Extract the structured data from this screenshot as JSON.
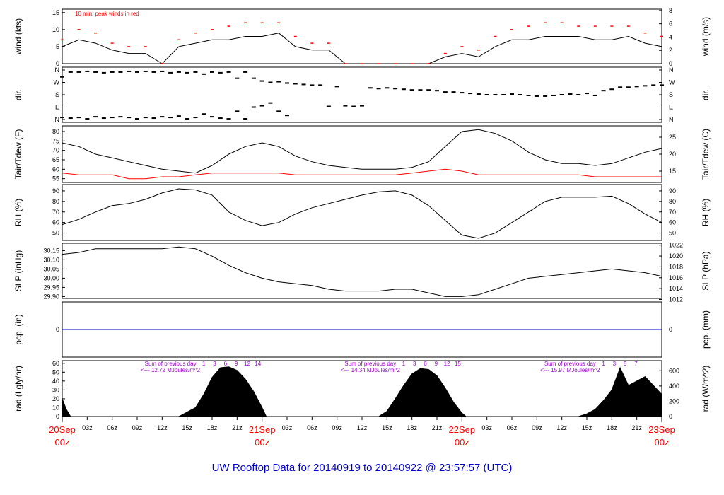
{
  "title": "UW Rooftop Data for 20140919  to  20140922 @ 23:57:57  (UTC)",
  "colors": {
    "peak": "#ff0000",
    "dew": "#ff0000",
    "pcp": "#0000cc",
    "title": "#0000cc",
    "annotation": "#9900cc",
    "date": "#ff0000"
  },
  "x_axis": {
    "hour_ticks": [
      "03z",
      "06z",
      "09z",
      "12z",
      "15z",
      "18z",
      "21z",
      "03z",
      "06z",
      "09z",
      "12z",
      "15z",
      "18z",
      "21z",
      "03z",
      "06z",
      "09z",
      "12z",
      "15z",
      "18z",
      "21z"
    ],
    "date_labels": [
      {
        "date": "20Sep",
        "hour": "00z"
      },
      {
        "date": "21Sep",
        "hour": "00z"
      },
      {
        "date": "22Sep",
        "hour": "00z"
      },
      {
        "date": "23Sep",
        "hour": "00z"
      }
    ]
  },
  "chart_data": [
    {
      "type": "line",
      "id": "wind",
      "ylabel": "wind (kts)",
      "ylabel_right": "wind (m/s)",
      "ylim": [
        0,
        16
      ],
      "yticks": [
        0,
        5,
        10,
        15
      ],
      "right_ylim": [
        0,
        8.2
      ],
      "right_yticks": [
        0,
        2,
        4,
        6,
        8
      ],
      "annotation": "10 min. peak winds in red",
      "x_hours": [
        0,
        2,
        4,
        6,
        8,
        10,
        12,
        14,
        16,
        18,
        20,
        22,
        24,
        26,
        28,
        30,
        32,
        34,
        36,
        38,
        40,
        42,
        44,
        46,
        48,
        50,
        52,
        54,
        56,
        58,
        60,
        62,
        64,
        66,
        68,
        70,
        72
      ],
      "series": [
        {
          "values": [
            5,
            7,
            6,
            4,
            3,
            3,
            0,
            5,
            6,
            7,
            7,
            8,
            8,
            9,
            5,
            4,
            4,
            0,
            0,
            0,
            0,
            0,
            0,
            2,
            3,
            2,
            5,
            7,
            7,
            8,
            8,
            8,
            7,
            7,
            8,
            6,
            5
          ]
        },
        {
          "values": [
            7,
            10,
            9,
            6,
            5,
            5,
            0,
            7,
            9,
            10,
            11,
            12,
            12,
            12,
            8,
            6,
            6,
            0,
            0,
            0,
            0,
            0,
            0,
            3,
            5,
            4,
            8,
            10,
            11,
            12,
            12,
            11,
            11,
            11,
            11,
            9,
            8
          ]
        }
      ]
    },
    {
      "type": "scatter",
      "id": "dir",
      "ylabel": "dir.",
      "ylabel_right": "dir.",
      "ylim": [
        0,
        360
      ],
      "yticks": [
        "N",
        "W",
        "S",
        "E",
        "N"
      ],
      "x_hours": [
        0,
        1,
        2,
        3,
        4,
        5,
        6,
        7,
        8,
        9,
        10,
        11,
        12,
        13,
        14,
        15,
        16,
        17,
        18,
        19,
        20,
        21,
        22,
        23,
        24,
        25,
        26,
        27,
        28,
        29,
        30,
        31,
        32,
        33,
        34,
        35,
        36,
        37,
        38,
        39,
        40,
        41,
        42,
        43,
        44,
        45,
        46,
        47,
        48,
        49,
        50,
        51,
        52,
        53,
        54,
        55,
        56,
        57,
        58,
        59,
        60,
        61,
        62,
        63,
        64,
        65,
        66,
        67,
        68,
        69,
        70,
        71,
        72
      ],
      "series": [
        {
          "values": [
            310,
            345,
            345,
            350,
            345,
            340,
            345,
            345,
            350,
            345,
            350,
            345,
            350,
            340,
            345,
            340,
            345,
            330,
            345,
            340,
            345,
            300,
            345,
            300,
            280,
            270,
            275,
            265,
            260,
            255,
            250,
            250,
            95,
            240,
            100,
            95,
            100,
            230,
            225,
            230,
            225,
            220,
            215,
            215,
            215,
            210,
            200,
            200,
            195,
            190,
            185,
            180,
            180,
            180,
            185,
            180,
            175,
            170,
            170,
            175,
            180,
            185,
            180,
            190,
            175,
            210,
            220,
            235,
            235,
            240,
            245,
            250,
            250
          ]
        },
        {
          "values": [
            15,
            10,
            15,
            5,
            20,
            10,
            15,
            20,
            15,
            5,
            15,
            10,
            20,
            15,
            25,
            5,
            15,
            40,
            20,
            10,
            5,
            60,
            5,
            90,
            100,
            120,
            60,
            30,
            0,
            0,
            0,
            0,
            0,
            0,
            0,
            0,
            0,
            0,
            0,
            0,
            0,
            0,
            0,
            0,
            0,
            0,
            0,
            0,
            0,
            0,
            0,
            0,
            0,
            0,
            0,
            0,
            0,
            0,
            0,
            0,
            0,
            0,
            0,
            0,
            0,
            0,
            0,
            0,
            0,
            0,
            0,
            0,
            0
          ]
        }
      ]
    },
    {
      "type": "line",
      "id": "temp",
      "ylabel": "Tair/Tdew (F)",
      "ylabel_right": "Tair/Tdew (C)",
      "ylim": [
        53,
        83
      ],
      "yticks": [
        55,
        60,
        65,
        70,
        75,
        80
      ],
      "right_yticks": [
        15,
        20,
        25
      ],
      "x_hours": [
        0,
        2,
        4,
        6,
        8,
        10,
        12,
        14,
        16,
        18,
        20,
        22,
        24,
        26,
        28,
        30,
        32,
        34,
        36,
        38,
        40,
        42,
        44,
        46,
        48,
        50,
        52,
        54,
        56,
        58,
        60,
        62,
        64,
        66,
        68,
        70,
        72
      ],
      "series": [
        {
          "values": [
            74,
            72,
            68,
            66,
            64,
            62,
            60,
            59,
            58,
            62,
            68,
            72,
            74,
            72,
            67,
            64,
            62,
            61,
            60,
            60,
            60,
            61,
            64,
            72,
            80,
            81,
            79,
            75,
            69,
            65,
            63,
            63,
            62,
            63,
            66,
            69,
            71
          ]
        },
        {
          "values": [
            58,
            57,
            57,
            57,
            55,
            55,
            56,
            56,
            57,
            58,
            58,
            58,
            58,
            58,
            57,
            57,
            57,
            57,
            57,
            57,
            57,
            58,
            59,
            60,
            59,
            57,
            57,
            57,
            57,
            57,
            57,
            57,
            56,
            56,
            56,
            56,
            56
          ]
        }
      ]
    },
    {
      "type": "line",
      "id": "rh",
      "ylabel": "RH (%)",
      "ylabel_right": "RH (%)",
      "ylim": [
        43,
        96
      ],
      "yticks": [
        50,
        60,
        70,
        80,
        90
      ],
      "right_yticks": [
        50,
        60,
        70,
        80,
        90
      ],
      "x_hours": [
        0,
        2,
        4,
        6,
        8,
        10,
        12,
        14,
        16,
        18,
        20,
        22,
        24,
        26,
        28,
        30,
        32,
        34,
        36,
        38,
        40,
        42,
        44,
        46,
        48,
        50,
        52,
        54,
        56,
        58,
        60,
        62,
        64,
        66,
        68,
        70,
        72
      ],
      "series": [
        {
          "values": [
            58,
            63,
            70,
            76,
            78,
            82,
            88,
            92,
            91,
            86,
            70,
            62,
            57,
            60,
            68,
            74,
            78,
            82,
            86,
            89,
            90,
            86,
            76,
            62,
            48,
            45,
            50,
            60,
            70,
            80,
            84,
            84,
            84,
            85,
            78,
            68,
            60
          ]
        }
      ]
    },
    {
      "type": "line",
      "id": "slp",
      "ylabel": "SLP (inHg)",
      "ylabel_right": "SLP (hPa)",
      "ylim": [
        29.89,
        30.19
      ],
      "yticks": [
        29.9,
        29.95,
        30.0,
        30.05,
        30.1,
        30.15
      ],
      "right_yticks": [
        1012,
        1014,
        1016,
        1018,
        1020,
        1022
      ],
      "x_hours": [
        0,
        2,
        4,
        6,
        8,
        10,
        12,
        14,
        16,
        18,
        20,
        22,
        24,
        26,
        28,
        30,
        32,
        34,
        36,
        38,
        40,
        42,
        44,
        46,
        48,
        50,
        52,
        54,
        56,
        58,
        60,
        62,
        64,
        66,
        68,
        70,
        72
      ],
      "series": [
        {
          "values": [
            30.13,
            30.14,
            30.16,
            30.16,
            30.16,
            30.16,
            30.16,
            30.17,
            30.16,
            30.12,
            30.07,
            30.03,
            30.0,
            29.98,
            29.97,
            29.96,
            29.94,
            29.93,
            29.93,
            29.93,
            29.94,
            29.94,
            29.92,
            29.9,
            29.9,
            29.91,
            29.94,
            29.97,
            30.0,
            30.01,
            30.02,
            30.03,
            30.04,
            30.05,
            30.04,
            30.03,
            30.01
          ]
        }
      ]
    },
    {
      "type": "line",
      "id": "pcp",
      "ylabel": "pcp. (in)",
      "ylabel_right": "pcp. (mm)",
      "ylim": [
        -1,
        1
      ],
      "yticks": [
        0
      ],
      "right_yticks": [
        0
      ],
      "x_hours": [
        0,
        72
      ],
      "series": [
        {
          "values": [
            0,
            0
          ]
        }
      ]
    },
    {
      "type": "area",
      "id": "rad",
      "ylabel": "rad (Lgly/hr)",
      "ylabel_right": "rad (W/m^2)",
      "ylim": [
        0,
        63
      ],
      "yticks": [
        0,
        10,
        20,
        30,
        40,
        50,
        60
      ],
      "right_yticks": [
        0,
        200,
        400,
        600
      ],
      "x_hours": [
        0,
        0.5,
        1,
        14,
        15,
        16,
        17,
        18,
        19,
        20,
        21,
        22,
        23,
        24,
        24.5,
        38,
        39,
        40,
        41,
        42,
        43,
        44,
        45,
        46,
        47,
        48,
        48.5,
        62,
        63,
        64,
        65,
        66,
        67,
        68,
        69,
        70,
        71,
        72
      ],
      "series": [
        {
          "values": [
            20,
            8,
            0,
            0,
            5,
            10,
            25,
            44,
            55,
            56,
            52,
            42,
            28,
            10,
            0,
            0,
            6,
            20,
            35,
            48,
            54,
            53,
            46,
            32,
            16,
            4,
            0,
            0,
            3,
            8,
            18,
            30,
            55,
            35,
            40,
            45,
            35,
            25
          ]
        }
      ],
      "sums": [
        {
          "label": "Sum of previous day",
          "value": "<--- 12.72 MJoules/m^2"
        },
        {
          "label": "Sum of previous day",
          "value": "<--- 14.34 MJoules/m^2"
        },
        {
          "label": "Sum of previous day",
          "value": "<--- 15.97 MJoules/m^2"
        }
      ],
      "hour_marks": [
        "1",
        "3",
        "6",
        "9",
        "12",
        "14",
        "1",
        "3",
        "6",
        "9",
        "12",
        "15",
        "1",
        "3",
        "5",
        "7"
      ]
    }
  ]
}
